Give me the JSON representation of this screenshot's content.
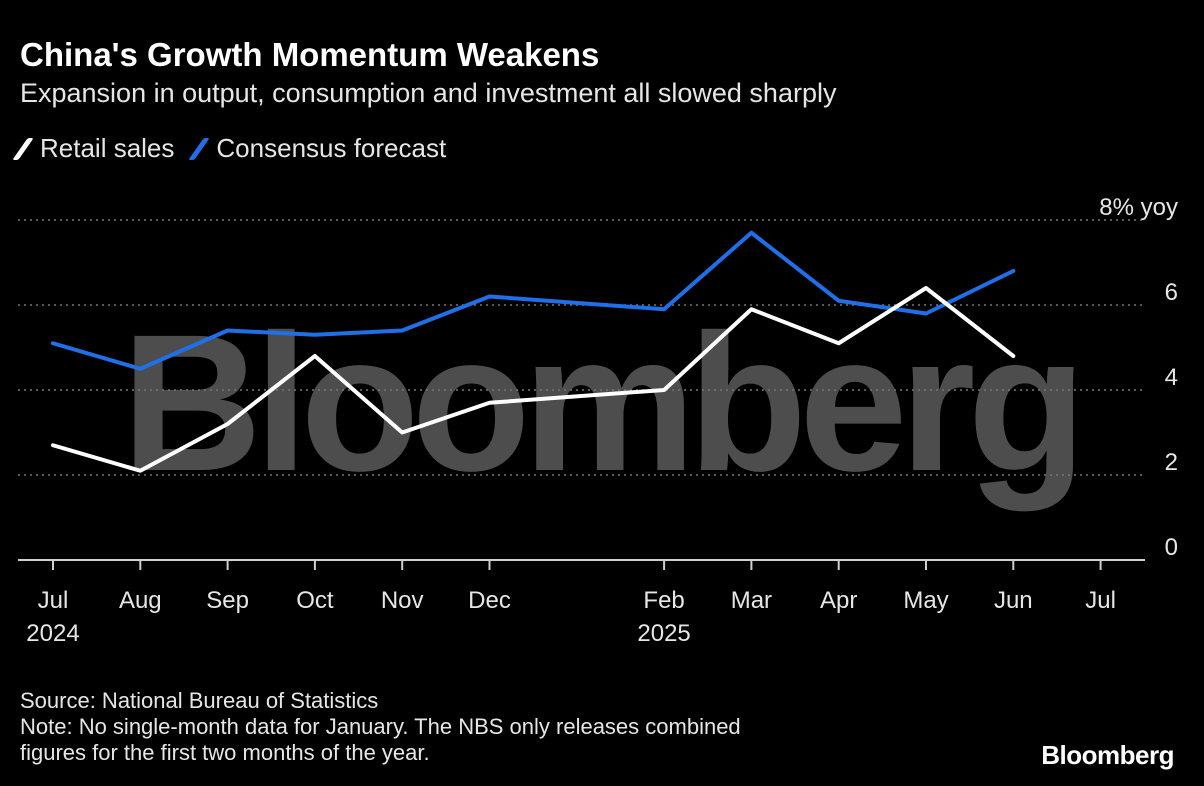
{
  "title": "China's Growth Momentum Weakens",
  "subtitle": "Expansion in output, consumption and investment all slowed sharply",
  "source": "Source: National Bureau of Statistics",
  "note_line1": "Note: No single-month data for January. The NBS only releases combined",
  "note_line2": "figures for the first two months of the year.",
  "logo": "Bloomberg",
  "watermark": "Bloomberg",
  "chart_data": {
    "type": "line",
    "title": "China's Growth Momentum Weakens",
    "subtitle": "Expansion in output, consumption and investment all slowed sharply",
    "y_unit_label": "8% yoy",
    "yticks": [
      0,
      2,
      4,
      6,
      8
    ],
    "ylim": [
      0,
      8
    ],
    "grid": true,
    "legend_placement": "top-left",
    "x_ticks": [
      {
        "month": "Jul",
        "year": "2024"
      },
      {
        "month": "Aug",
        "year": ""
      },
      {
        "month": "Sep",
        "year": ""
      },
      {
        "month": "Oct",
        "year": ""
      },
      {
        "month": "Nov",
        "year": ""
      },
      {
        "month": "Dec",
        "year": ""
      },
      {
        "month": "Feb",
        "year": "2025"
      },
      {
        "month": "Mar",
        "year": ""
      },
      {
        "month": "Apr",
        "year": ""
      },
      {
        "month": "May",
        "year": ""
      },
      {
        "month": "Jun",
        "year": ""
      },
      {
        "month": "Jul",
        "year": ""
      }
    ],
    "x": [
      "2024-07",
      "2024-08",
      "2024-09",
      "2024-10",
      "2024-11",
      "2024-12",
      "2025-02",
      "2025-03",
      "2025-04",
      "2025-05",
      "2025-06"
    ],
    "series": [
      {
        "name": "Retail sales",
        "color": "#ffffff",
        "values": [
          2.7,
          2.1,
          3.2,
          4.8,
          3.0,
          3.7,
          4.0,
          5.9,
          5.1,
          6.4,
          4.8
        ]
      },
      {
        "name": "Consensus forecast",
        "color": "#1f6fe8",
        "values": [
          5.1,
          4.5,
          5.4,
          5.3,
          5.4,
          6.2,
          5.9,
          7.7,
          6.1,
          5.8,
          6.8
        ]
      }
    ]
  }
}
